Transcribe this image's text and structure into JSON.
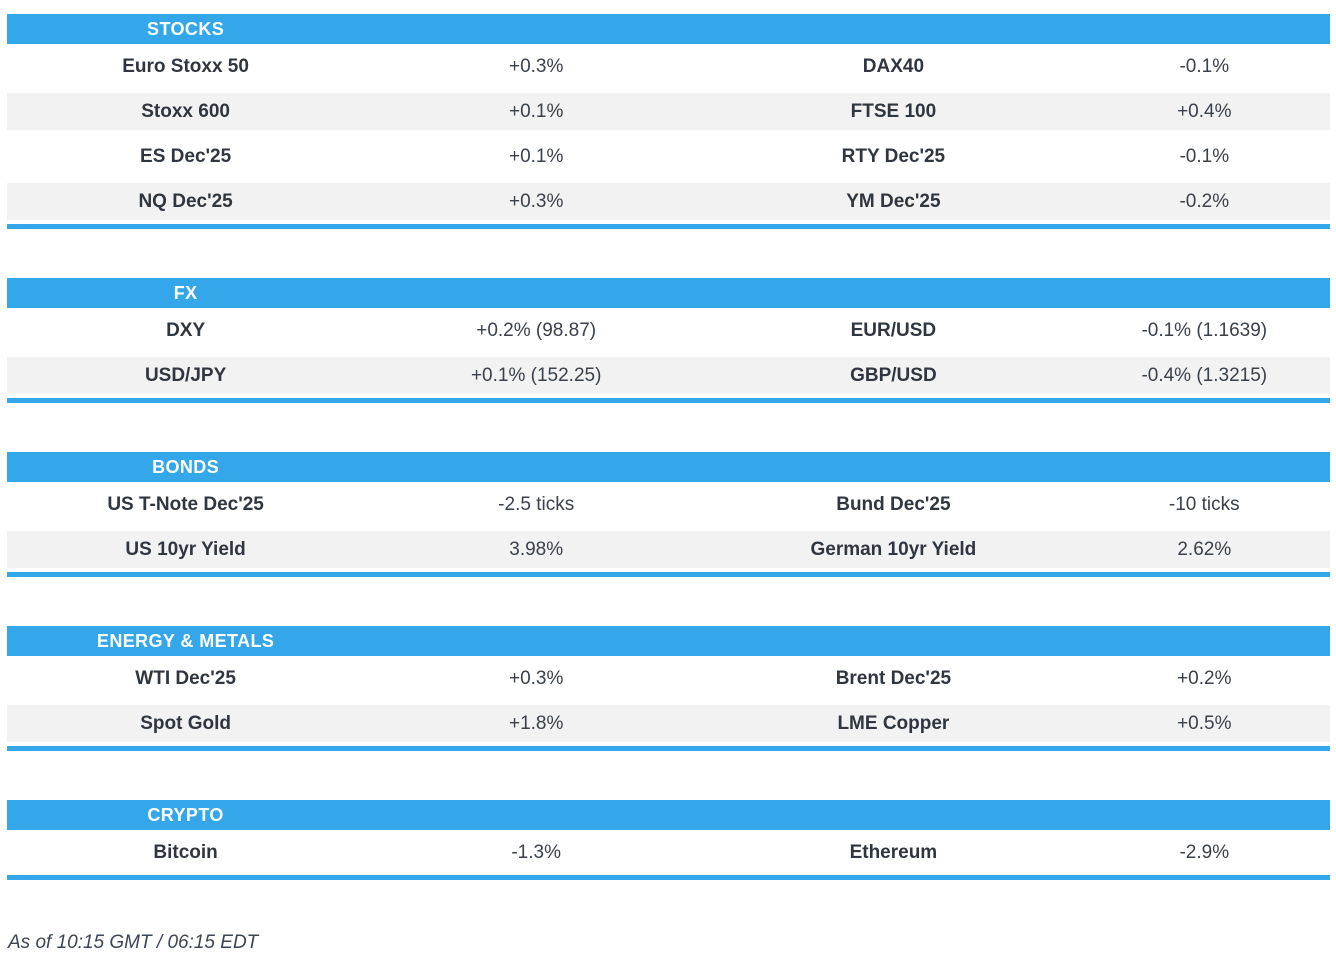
{
  "page": {
    "accent_color": "#33a7e9",
    "stripe_color": "#f2f2f3",
    "name_text_color": "#2f3640",
    "value_text_color": "#3a414b"
  },
  "sections": [
    {
      "title": "STOCKS",
      "rows": [
        {
          "l_name": "Euro Stoxx 50",
          "l_value": "+0.3%",
          "r_name": "DAX40",
          "r_value": "-0.1%"
        },
        {
          "l_name": "Stoxx 600",
          "l_value": "+0.1%",
          "r_name": "FTSE 100",
          "r_value": "+0.4%"
        },
        {
          "l_name": "ES Dec'25",
          "l_value": "+0.1%",
          "r_name": "RTY Dec'25",
          "r_value": "-0.1%"
        },
        {
          "l_name": "NQ Dec'25",
          "l_value": "+0.3%",
          "r_name": "YM Dec'25",
          "r_value": "-0.2%"
        }
      ]
    },
    {
      "title": "FX",
      "rows": [
        {
          "l_name": "DXY",
          "l_value": "+0.2% (98.87)",
          "r_name": "EUR/USD",
          "r_value": "-0.1% (1.1639)"
        },
        {
          "l_name": "USD/JPY",
          "l_value": "+0.1% (152.25)",
          "r_name": "GBP/USD",
          "r_value": "-0.4% (1.3215)"
        }
      ]
    },
    {
      "title": "BONDS",
      "rows": [
        {
          "l_name": "US T-Note Dec'25",
          "l_value": "-2.5 ticks",
          "r_name": "Bund Dec'25",
          "r_value": "-10 ticks"
        },
        {
          "l_name": "US 10yr Yield",
          "l_value": "3.98%",
          "r_name": "German 10yr Yield",
          "r_value": "2.62%"
        }
      ]
    },
    {
      "title": "ENERGY & METALS",
      "rows": [
        {
          "l_name": "WTI Dec'25",
          "l_value": "+0.3%",
          "r_name": "Brent Dec'25",
          "r_value": "+0.2%"
        },
        {
          "l_name": "Spot Gold",
          "l_value": "+1.8%",
          "r_name": "LME Copper",
          "r_value": "+0.5%"
        }
      ]
    },
    {
      "title": "CRYPTO",
      "rows": [
        {
          "l_name": "Bitcoin",
          "l_value": "-1.3%",
          "r_name": "Ethereum",
          "r_value": "-2.9%"
        }
      ]
    }
  ],
  "footer": {
    "as_of": "As of 10:15 GMT / 06:15 EDT"
  }
}
